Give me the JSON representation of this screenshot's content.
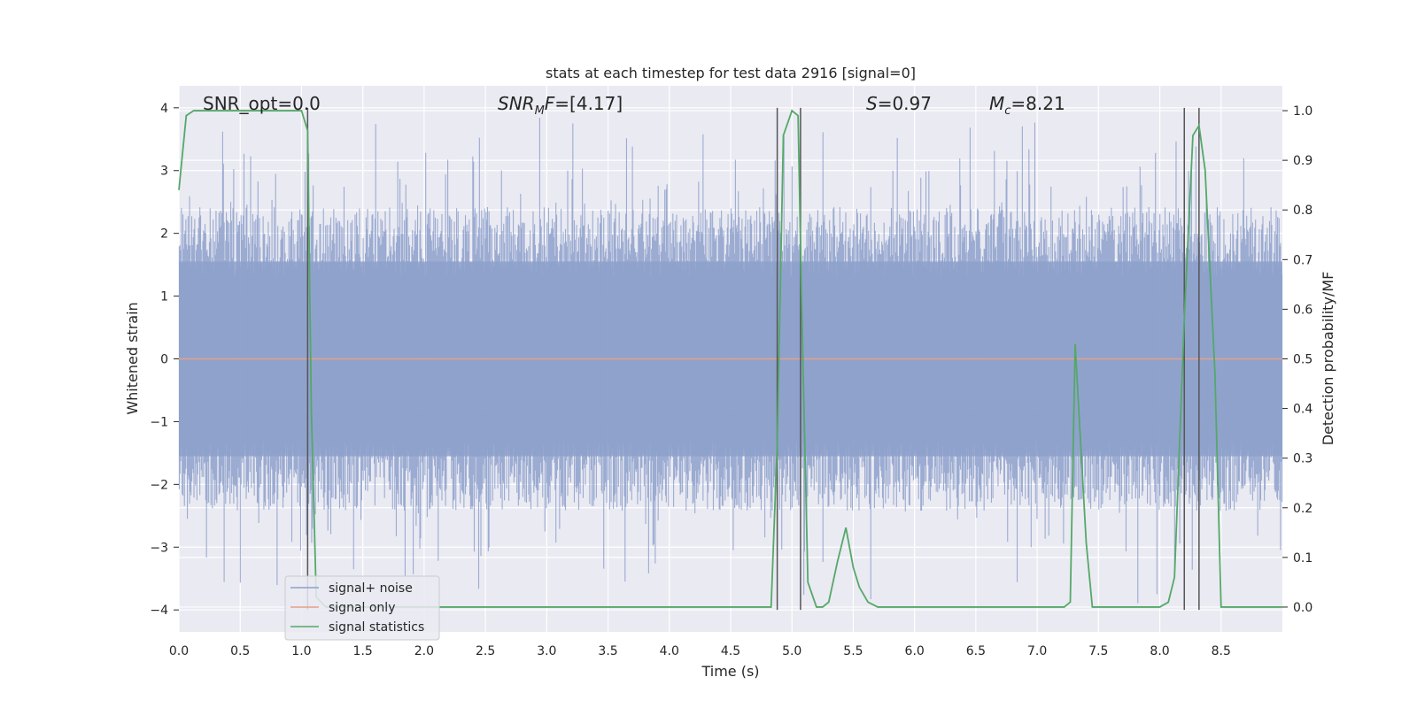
{
  "chart_data": {
    "type": "line",
    "title": "stats at each timestep for test data 2916 [signal=0]",
    "xlabel": "Time (s)",
    "ylabel_left": "Whitened strain",
    "ylabel_right": "Detection probability/MF",
    "xlim": [
      0,
      9.0
    ],
    "ylim_left": [
      -4.35,
      4.35
    ],
    "ylim_right": [
      -0.05,
      1.05
    ],
    "grid": true,
    "legend_placement": "lower-left",
    "x_ticks": [
      "0.0",
      "0.5",
      "1.0",
      "1.5",
      "2.0",
      "2.5",
      "3.0",
      "3.5",
      "4.0",
      "4.5",
      "5.0",
      "5.5",
      "6.0",
      "6.5",
      "7.0",
      "7.5",
      "8.0",
      "8.5"
    ],
    "x_tick_values": [
      0,
      0.5,
      1,
      1.5,
      2,
      2.5,
      3,
      3.5,
      4,
      4.5,
      5,
      5.5,
      6,
      6.5,
      7,
      7.5,
      8,
      8.5
    ],
    "y_left_ticks": [
      "4",
      "3",
      "2",
      "1",
      "0",
      "−1",
      "−2",
      "−3",
      "−4"
    ],
    "y_left_tick_values": [
      4,
      3,
      2,
      1,
      0,
      -1,
      -2,
      -3,
      -4
    ],
    "y_right_ticks": [
      "1.0",
      "0.9",
      "0.8",
      "0.7",
      "0.6",
      "0.5",
      "0.4",
      "0.3",
      "0.2",
      "0.1",
      "0.0"
    ],
    "y_right_tick_values": [
      1.0,
      0.9,
      0.8,
      0.7,
      0.6,
      0.5,
      0.4,
      0.3,
      0.2,
      0.1,
      0.0
    ],
    "annotations": [
      {
        "key": "snr_opt",
        "text": "SNR_opt=0.0",
        "x": 0.19,
        "y": 4.0
      },
      {
        "key": "snr_mf",
        "text": "[4.17]",
        "x": 2.6,
        "y": 4.0
      },
      {
        "key": "s",
        "text": "=0.97",
        "x": 5.6,
        "y": 4.0
      },
      {
        "key": "mc",
        "text": "=8.21",
        "x": 6.6,
        "y": 4.0
      }
    ],
    "annotation_parts": {
      "snr_mf_prefix": "SNR",
      "snr_mf_sub": "M",
      "snr_mf_mid": "F=",
      "s_prefix": "S",
      "mc_prefix": "M",
      "mc_sub": "c"
    },
    "series": [
      {
        "name": "signal+ noise",
        "color": "#8da0cb",
        "kind": "noise",
        "amplitude_band": [
          -2.2,
          2.2
        ],
        "peak_range": [
          -4.0,
          3.9
        ]
      },
      {
        "name": "signal only",
        "color": "#e8a088",
        "kind": "flat",
        "y": 0
      },
      {
        "name": "signal statistics",
        "color": "#55a868",
        "axis": "right",
        "x": [
          0.0,
          0.06,
          0.12,
          0.2,
          0.4,
          0.6,
          0.8,
          1.0,
          1.05,
          1.08,
          1.12,
          1.2,
          1.5,
          2.0,
          3.0,
          4.0,
          4.5,
          4.83,
          4.88,
          4.93,
          5.0,
          5.05,
          5.08,
          5.13,
          5.2,
          5.25,
          5.3,
          5.37,
          5.44,
          5.5,
          5.55,
          5.62,
          5.7,
          6.0,
          6.5,
          7.0,
          7.22,
          7.27,
          7.31,
          7.35,
          7.4,
          7.45,
          7.6,
          8.0,
          8.07,
          8.12,
          8.2,
          8.27,
          8.32,
          8.37,
          8.45,
          8.5,
          9.0
        ],
        "y": [
          0.84,
          0.99,
          1.0,
          1.0,
          1.0,
          1.0,
          1.0,
          1.0,
          0.96,
          0.4,
          0.02,
          0.0,
          0.0,
          0.0,
          0.0,
          0.0,
          0.0,
          0.0,
          0.33,
          0.95,
          1.0,
          0.99,
          0.6,
          0.05,
          0.0,
          0.0,
          0.01,
          0.09,
          0.16,
          0.08,
          0.04,
          0.01,
          0.0,
          0.0,
          0.0,
          0.0,
          0.0,
          0.01,
          0.53,
          0.35,
          0.13,
          0.0,
          0.0,
          0.0,
          0.01,
          0.06,
          0.58,
          0.95,
          0.97,
          0.88,
          0.47,
          0.0,
          0.0
        ]
      }
    ],
    "vertical_lines": [
      {
        "x": 1.05,
        "y_range": [
          -4.0,
          4.0
        ],
        "color": "#555555"
      },
      {
        "x": 4.88,
        "y_range": [
          -4.0,
          4.0
        ],
        "color": "#555555"
      },
      {
        "x": 5.07,
        "y_range": [
          -4.0,
          4.0
        ],
        "color": "#555555"
      },
      {
        "x": 8.2,
        "y_range": [
          -4.0,
          4.0
        ],
        "color": "#555555"
      },
      {
        "x": 8.32,
        "y_range": [
          -4.0,
          4.0
        ],
        "color": "#555555"
      }
    ]
  }
}
